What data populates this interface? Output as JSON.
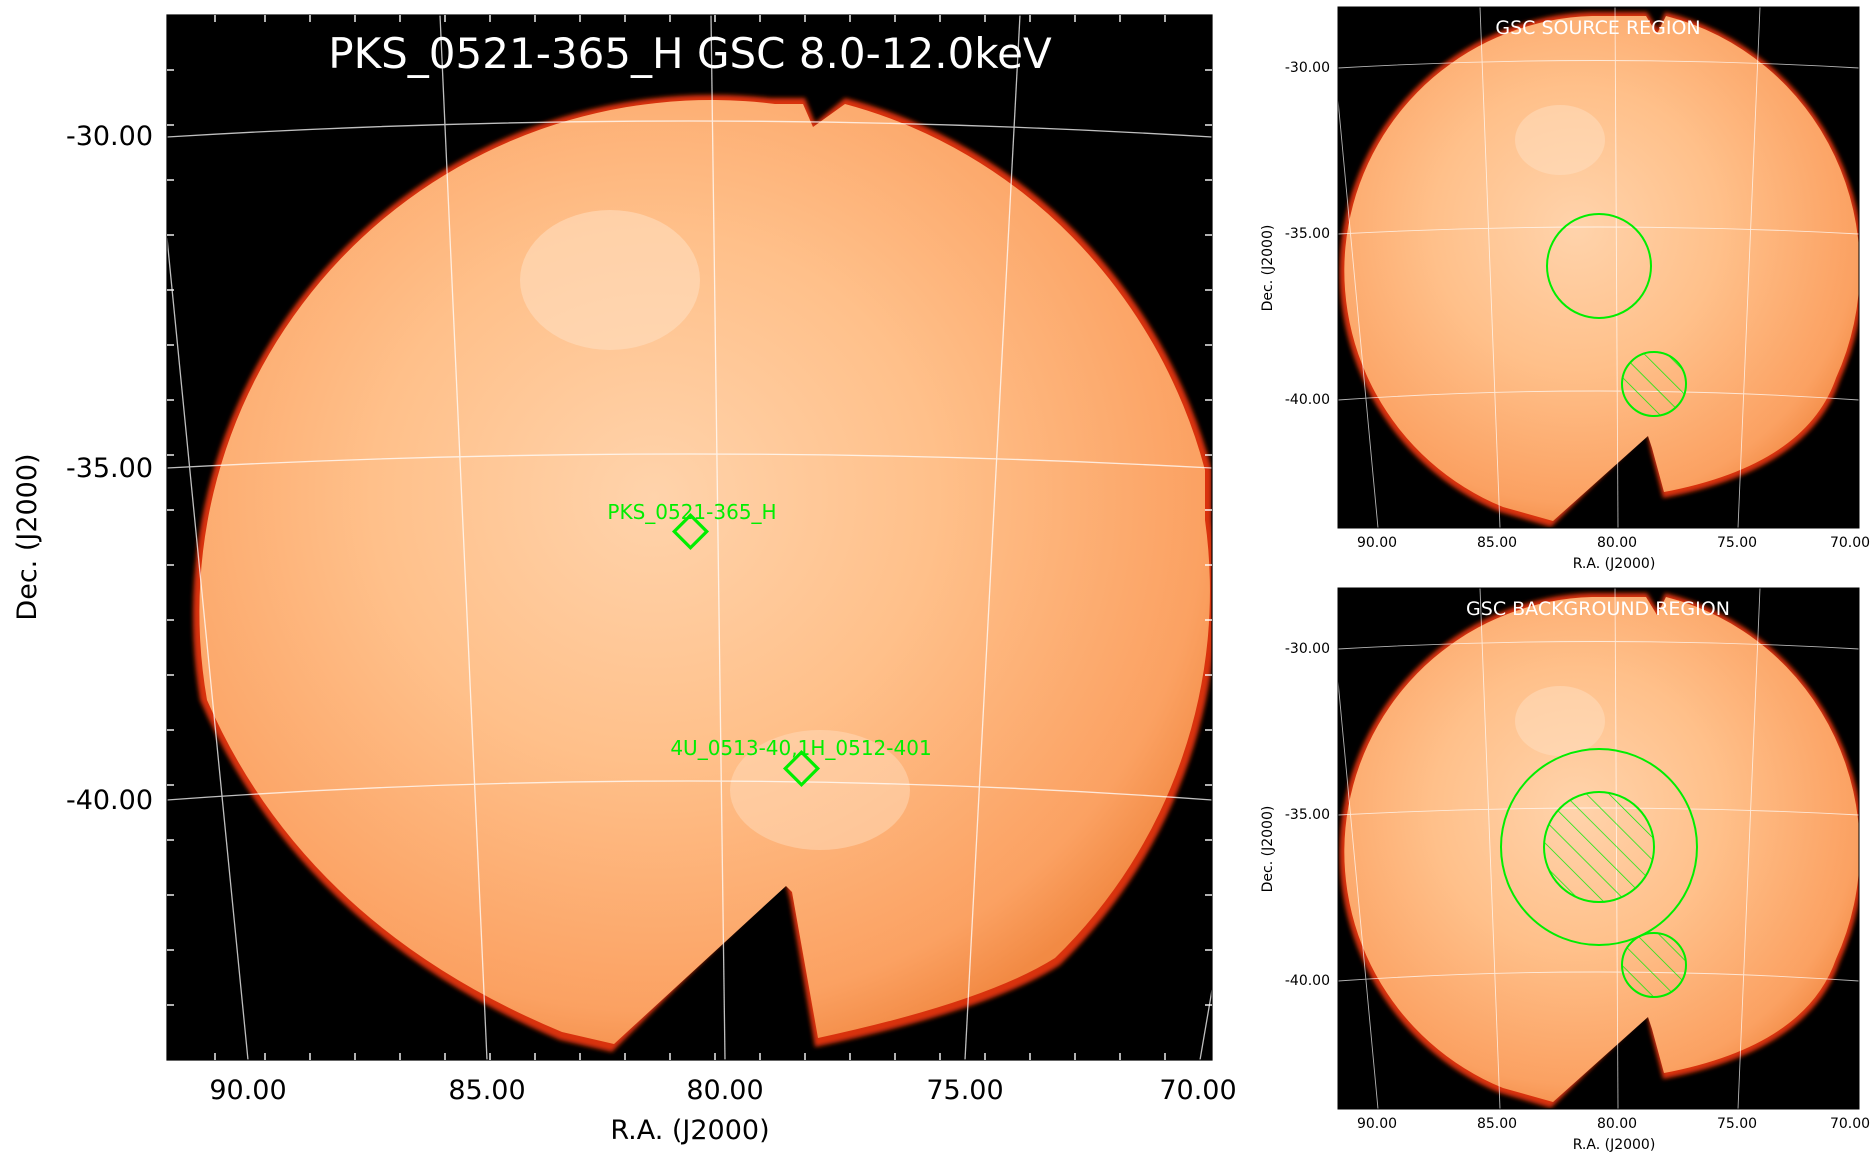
{
  "main_panel": {
    "title": "PKS_0521-365_H GSC 8.0-12.0keV",
    "xlabel": "R.A. (J2000)",
    "ylabel": "Dec. (J2000)",
    "x_ticks": [
      "90.00",
      "85.00",
      "80.00",
      "75.00",
      "70.00"
    ],
    "y_ticks": [
      "-30.00",
      "-35.00",
      "-40.00"
    ],
    "sources": [
      {
        "label": "PKS_0521-365_H"
      },
      {
        "label": "4U_0513-40,1H_0512-401"
      }
    ]
  },
  "source_panel": {
    "title": "GSC SOURCE REGION",
    "xlabel": "R.A. (J2000)",
    "ylabel": "Dec. (J2000)",
    "x_ticks": [
      "90.00",
      "85.00",
      "80.00",
      "75.00",
      "70.00"
    ],
    "y_ticks": [
      "-30.00",
      "-35.00",
      "-40.00"
    ]
  },
  "background_panel": {
    "title": "GSC BACKGROUND REGION",
    "xlabel": "R.A. (J2000)",
    "ylabel": "Dec. (J2000)",
    "x_ticks": [
      "90.00",
      "85.00",
      "80.00",
      "75.00",
      "70.00"
    ],
    "y_ticks": [
      "-30.00",
      "-35.00",
      "-40.00"
    ]
  },
  "colors": {
    "image_bright": "#ffcfa3",
    "image_mid": "#fb9a55",
    "image_edge": "#e0220a",
    "region_green": "#00ee00",
    "grid": "#ffffff"
  }
}
